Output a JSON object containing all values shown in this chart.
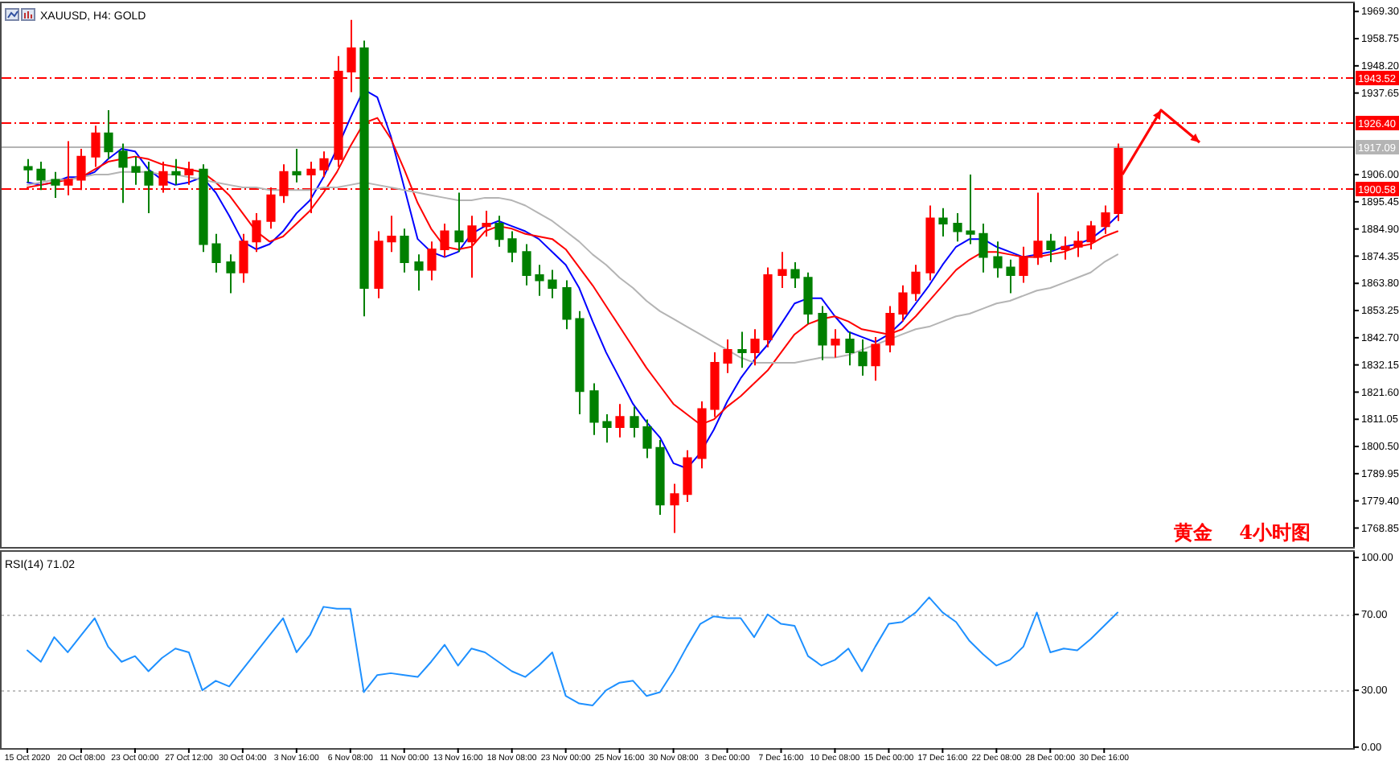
{
  "chart_data": [
    {
      "type": "candlestick",
      "title": "XAUUSD, H4: GOLD",
      "categories": [
        null,
        null,
        null,
        null,
        null,
        null,
        null,
        null,
        null,
        null,
        null,
        null,
        null,
        null,
        null,
        null,
        null,
        null,
        null,
        null,
        null,
        null,
        null,
        null,
        null,
        null,
        null,
        null,
        null,
        null,
        null,
        null,
        null,
        null,
        null,
        null,
        null,
        null,
        null,
        null,
        null,
        null,
        null,
        null,
        null,
        null,
        null,
        null,
        null,
        null,
        null,
        null,
        null,
        null,
        null,
        null,
        null,
        null,
        null,
        null,
        null,
        null,
        null,
        null,
        null,
        null,
        null,
        null,
        null,
        null,
        null,
        null,
        null,
        null,
        null,
        null,
        null,
        null,
        null,
        null,
        null,
        null
      ],
      "ohlc": [
        [
          1909,
          1912,
          1903,
          1908
        ],
        [
          1908,
          1911,
          1900,
          1904
        ],
        [
          1904,
          1907,
          1897,
          1902
        ],
        [
          1902,
          1919,
          1898,
          1904
        ],
        [
          1904,
          1916,
          1900,
          1913
        ],
        [
          1913,
          1925,
          1909,
          1922
        ],
        [
          1922,
          1931,
          1912,
          1915
        ],
        [
          1915,
          1918,
          1895,
          1909
        ],
        [
          1909,
          1913,
          1902,
          1907
        ],
        [
          1907,
          1911,
          1891,
          1902
        ],
        [
          1902,
          1911,
          1899,
          1907
        ],
        [
          1907,
          1912,
          1902,
          1906
        ],
        [
          1906,
          1911,
          1902,
          1908
        ],
        [
          1908,
          1910,
          1876,
          1879
        ],
        [
          1879,
          1883,
          1868,
          1872
        ],
        [
          1872,
          1875,
          1860,
          1868
        ],
        [
          1868,
          1883,
          1864,
          1880
        ],
        [
          1880,
          1891,
          1876,
          1888
        ],
        [
          1888,
          1901,
          1885,
          1898
        ],
        [
          1898,
          1910,
          1895,
          1907
        ],
        [
          1907,
          1916,
          1903,
          1906
        ],
        [
          1906,
          1911,
          1891,
          1908
        ],
        [
          1908,
          1915,
          1905,
          1912
        ],
        [
          1912,
          1952,
          1909,
          1946
        ],
        [
          1946,
          1966,
          1938,
          1955
        ],
        [
          1955,
          1958,
          1851,
          1862
        ],
        [
          1862,
          1884,
          1858,
          1880
        ],
        [
          1880,
          1890,
          1876,
          1882
        ],
        [
          1882,
          1885,
          1868,
          1872
        ],
        [
          1872,
          1875,
          1861,
          1869
        ],
        [
          1869,
          1880,
          1865,
          1877
        ],
        [
          1877,
          1887,
          1874,
          1884
        ],
        [
          1884,
          1899,
          1876,
          1880
        ],
        [
          1880,
          1890,
          1866,
          1886
        ],
        [
          1886,
          1892,
          1882,
          1887
        ],
        [
          1887,
          1890,
          1878,
          1881
        ],
        [
          1881,
          1884,
          1872,
          1876
        ],
        [
          1876,
          1879,
          1863,
          1867
        ],
        [
          1867,
          1871,
          1859,
          1865
        ],
        [
          1865,
          1869,
          1858,
          1862
        ],
        [
          1862,
          1865,
          1846,
          1850
        ],
        [
          1850,
          1853,
          1813,
          1822
        ],
        [
          1822,
          1825,
          1805,
          1810
        ],
        [
          1810,
          1813,
          1802,
          1808
        ],
        [
          1808,
          1817,
          1804,
          1812
        ],
        [
          1812,
          1816,
          1804,
          1808
        ],
        [
          1808,
          1811,
          1796,
          1800
        ],
        [
          1800,
          1803,
          1774,
          1778
        ],
        [
          1778,
          1786,
          1767,
          1782
        ],
        [
          1782,
          1799,
          1779,
          1796
        ],
        [
          1796,
          1818,
          1792,
          1815
        ],
        [
          1815,
          1837,
          1812,
          1833
        ],
        [
          1833,
          1842,
          1829,
          1838
        ],
        [
          1838,
          1845,
          1831,
          1837
        ],
        [
          1837,
          1846,
          1832,
          1842
        ],
        [
          1842,
          1870,
          1839,
          1867
        ],
        [
          1867,
          1876,
          1862,
          1869
        ],
        [
          1869,
          1872,
          1862,
          1866
        ],
        [
          1866,
          1868,
          1848,
          1852
        ],
        [
          1852,
          1855,
          1834,
          1840
        ],
        [
          1840,
          1846,
          1835,
          1842
        ],
        [
          1842,
          1845,
          1832,
          1837
        ],
        [
          1837,
          1842,
          1828,
          1832
        ],
        [
          1832,
          1843,
          1826,
          1840
        ],
        [
          1840,
          1855,
          1837,
          1852
        ],
        [
          1852,
          1863,
          1849,
          1860
        ],
        [
          1860,
          1871,
          1857,
          1868
        ],
        [
          1868,
          1894,
          1865,
          1889
        ],
        [
          1889,
          1893,
          1882,
          1887
        ],
        [
          1887,
          1891,
          1880,
          1884
        ],
        [
          1884,
          1906,
          1879,
          1883
        ],
        [
          1883,
          1887,
          1868,
          1874
        ],
        [
          1874,
          1880,
          1866,
          1870
        ],
        [
          1870,
          1873,
          1860,
          1867
        ],
        [
          1867,
          1878,
          1864,
          1874
        ],
        [
          1874,
          1899,
          1871,
          1880
        ],
        [
          1880,
          1883,
          1872,
          1877
        ],
        [
          1877,
          1882,
          1873,
          1878
        ],
        [
          1878,
          1884,
          1874,
          1880
        ],
        [
          1880,
          1888,
          1877,
          1886
        ],
        [
          1886,
          1894,
          1883,
          1891
        ],
        [
          1891,
          1918,
          1888,
          1916
        ]
      ],
      "series": [
        {
          "type": "line",
          "color": "#0000ff",
          "values": [
            1903,
            1902,
            1903,
            1905,
            1905,
            1907,
            1912,
            1916,
            1915,
            1908,
            1904,
            1902,
            1903,
            1905,
            1899,
            1890,
            1880,
            1877,
            1879,
            1884,
            1891,
            1896,
            1905,
            1916,
            1928,
            1939,
            1936,
            1921,
            1901,
            1881,
            1876,
            1874,
            1876,
            1883,
            1886,
            1888,
            1886,
            1884,
            1881,
            1876,
            1871,
            1862,
            1849,
            1837,
            1827,
            1817,
            1810,
            1804,
            1794,
            1792,
            1798,
            1807,
            1818,
            1827,
            1834,
            1840,
            1848,
            1856,
            1858,
            1858,
            1851,
            1845,
            1843,
            1841,
            1844,
            1849,
            1856,
            1863,
            1871,
            1878,
            1881,
            1881,
            1878,
            1876,
            1874,
            1875,
            1876,
            1878,
            1879,
            1881,
            1885,
            1890
          ]
        },
        {
          "type": "line",
          "color": "#ff0000",
          "values": [
            1901,
            1902,
            1903,
            1904,
            1905,
            1908,
            1911,
            1912,
            1913,
            1912,
            1910,
            1909,
            1908,
            1907,
            1903,
            1898,
            1891,
            1884,
            1880,
            1882,
            1887,
            1892,
            1899,
            1907,
            1917,
            1926,
            1928,
            1920,
            1908,
            1895,
            1885,
            1878,
            1877,
            1878,
            1884,
            1886,
            1885,
            1883,
            1882,
            1881,
            1877,
            1870,
            1863,
            1855,
            1847,
            1839,
            1831,
            1824,
            1817,
            1813,
            1809,
            1811,
            1816,
            1820,
            1825,
            1830,
            1837,
            1844,
            1848,
            1850,
            1851,
            1849,
            1846,
            1845,
            1844,
            1846,
            1851,
            1857,
            1863,
            1869,
            1873,
            1876,
            1876,
            1875,
            1874,
            1874,
            1875,
            1876,
            1878,
            1879,
            1882,
            1884
          ]
        },
        {
          "type": "line",
          "color": "#b4b4b4",
          "values": [
            1902,
            1903,
            1904,
            1904,
            1905,
            1906,
            1906,
            1907,
            1907,
            1907,
            1906,
            1906,
            1905,
            1904,
            1903,
            1902,
            1901,
            1901,
            1900,
            1900,
            1900,
            1900,
            1901,
            1901,
            1902,
            1903,
            1902,
            1901,
            1900,
            1899,
            1898,
            1897,
            1896,
            1896,
            1897,
            1897,
            1896,
            1894,
            1891,
            1888,
            1884,
            1880,
            1875,
            1871,
            1866,
            1862,
            1857,
            1853,
            1850,
            1847,
            1844,
            1841,
            1838,
            1835,
            1833,
            1833,
            1833,
            1833,
            1834,
            1835,
            1835,
            1836,
            1838,
            1840,
            1842,
            1844,
            1846,
            1847,
            1849,
            1851,
            1852,
            1854,
            1856,
            1857,
            1859,
            1861,
            1862,
            1864,
            1866,
            1868,
            1872,
            1875
          ]
        }
      ],
      "ylim": [
        1761.5,
        1972.5
      ],
      "yticks": [
        {
          "value": 1969.3,
          "label": "1969.30"
        },
        1958.75,
        {
          "value": 1948.2,
          "label": "1948.20"
        },
        1937.65,
        {
          "value": 1906,
          "label": "1906.00"
        },
        1895.45,
        {
          "value": 1884.9,
          "label": "1884.90"
        },
        1874.35,
        {
          "value": 1863.8,
          "label": "1863.80"
        },
        1853.25,
        {
          "value": 1842.7,
          "label": "1842.70"
        },
        1832.15,
        {
          "value": 1821.6,
          "label": "1821.60"
        },
        1811.05,
        {
          "value": 1800.5,
          "label": "1800.50"
        },
        1789.95,
        {
          "value": 1779.4,
          "label": "1779.40"
        },
        1768.85
      ],
      "ref_lines": [
        {
          "axis": "y",
          "value": 1943.52,
          "label": "1943.52",
          "color": "#ff0000",
          "line_style": "dashed"
        },
        {
          "axis": "y",
          "value": 1926.4,
          "label": "1926.40",
          "color": "#ff0000",
          "line_style": "dashed"
        },
        {
          "axis": "y",
          "value": 1917.09,
          "label": "1917.09",
          "color": "#b4b4b4",
          "line_style": "solid"
        },
        {
          "axis": "y",
          "value": 1900.58,
          "label": "1900.58",
          "color": "#ff0000",
          "line_style": "dashed"
        }
      ],
      "annotations": [
        "黄金    4小时图"
      ]
    },
    {
      "type": "line",
      "title": "RSI(14) 71.02",
      "color": "#1e90ff",
      "categories": [
        "15 Oct 2020",
        null,
        null,
        null,
        "20 Oct 08:00",
        null,
        null,
        null,
        "23 Oct 00:00",
        null,
        null,
        null,
        "27 Oct 12:00",
        null,
        null,
        null,
        "30 Oct 04:00",
        null,
        null,
        null,
        "3 Nov 16:00",
        null,
        null,
        null,
        "6 Nov 08:00",
        null,
        null,
        null,
        "11 Nov 00:00",
        null,
        null,
        null,
        "13 Nov 16:00",
        null,
        null,
        null,
        "18 Nov 08:00",
        null,
        null,
        null,
        "23 Nov 00:00",
        null,
        null,
        null,
        "25 Nov 16:00",
        null,
        null,
        null,
        "30 Nov 08:00",
        null,
        null,
        null,
        "3 Dec 00:00",
        null,
        null,
        null,
        "7 Dec 16:00",
        null,
        null,
        null,
        "10 Dec 08:00",
        null,
        null,
        null,
        "15 Dec 00:00",
        null,
        null,
        null,
        "17 Dec 16:00",
        null,
        null,
        null,
        "22 Dec 08:00",
        null,
        null,
        null,
        "28 Dec 00:00",
        null,
        null,
        null,
        "30 Dec 16:00",
        null
      ],
      "values": [
        51,
        45,
        58,
        50,
        59,
        68,
        53,
        45,
        48,
        40,
        47,
        52,
        50,
        30,
        35,
        32,
        41,
        50,
        59,
        68,
        50,
        59,
        74,
        73,
        73,
        29,
        38,
        39,
        38,
        37,
        45,
        54,
        43,
        52,
        50,
        45,
        40,
        37,
        43,
        50,
        27,
        23,
        22,
        30,
        34,
        35,
        27,
        29,
        40,
        53,
        65,
        69,
        68,
        68,
        58,
        70,
        65,
        64,
        48,
        43,
        46,
        52,
        40,
        53,
        65,
        66,
        71,
        79,
        71,
        66,
        56,
        49,
        43,
        46,
        53,
        71,
        50,
        52,
        51,
        57,
        64,
        71
      ],
      "ylim": [
        -0.5,
        103
      ],
      "yticks": [
        {
          "value": 100,
          "label": "100.00"
        },
        {
          "value": 70,
          "label": "70.00"
        },
        {
          "value": 30,
          "label": "30.00"
        },
        {
          "value": 0,
          "label": "0.00"
        }
      ],
      "ref_lines": [
        {
          "axis": "y",
          "value": 70,
          "color": "#c0c0c0",
          "line_style": "dotted"
        },
        {
          "axis": "y",
          "value": 30,
          "color": "#c0c0c0",
          "line_style": "dotted"
        }
      ]
    }
  ]
}
